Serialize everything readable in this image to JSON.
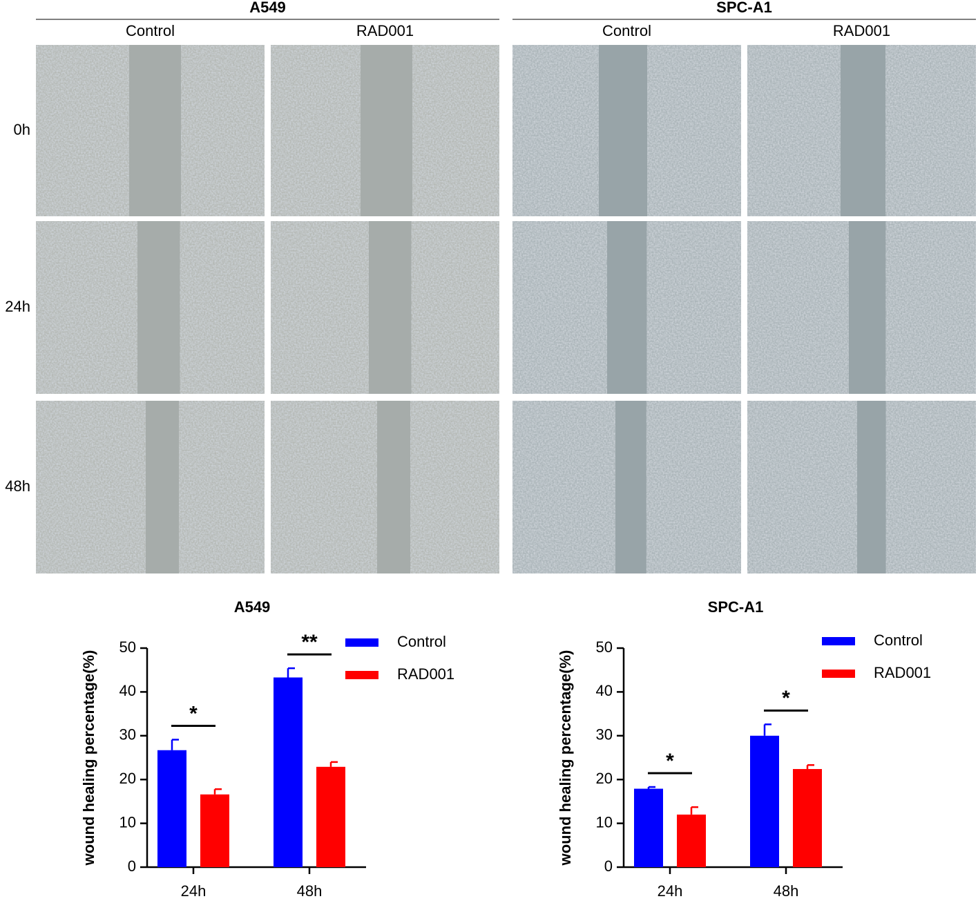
{
  "panel": {
    "groups": [
      {
        "name": "A549",
        "conditions": [
          "Control",
          "RAD001"
        ]
      },
      {
        "name": "SPC-A1",
        "conditions": [
          "Control",
          "RAD001"
        ]
      }
    ],
    "times": [
      "0h",
      "24h",
      "48h"
    ]
  },
  "chart_data": [
    {
      "type": "bar",
      "title": "A549",
      "y_label": "wound healing percentage(%)",
      "categories": [
        "24h",
        "48h"
      ],
      "series": [
        {
          "name": "Control",
          "color": "#0000ff",
          "values": [
            26.7,
            43.3
          ],
          "errors": [
            2.4,
            2.1
          ]
        },
        {
          "name": "RAD001",
          "color": "#ff0000",
          "values": [
            16.6,
            22.9
          ],
          "errors": [
            1.2,
            1.1
          ]
        }
      ],
      "annotations": [
        "*",
        "**"
      ],
      "ylim": [
        0,
        50
      ],
      "yticks": [
        0,
        10,
        20,
        30,
        40,
        50
      ],
      "legend": "top-right"
    },
    {
      "type": "bar",
      "title": "SPC-A1",
      "y_label": "wound healing percentage(%)",
      "categories": [
        "24h",
        "48h"
      ],
      "series": [
        {
          "name": "Control",
          "color": "#0000ff",
          "values": [
            17.9,
            30.0
          ],
          "errors": [
            0.4,
            2.6
          ]
        },
        {
          "name": "RAD001",
          "color": "#ff0000",
          "values": [
            12.0,
            22.4
          ],
          "errors": [
            1.7,
            0.9
          ]
        }
      ],
      "annotations": [
        "*",
        "*"
      ],
      "ylim": [
        0,
        50
      ],
      "yticks": [
        0,
        10,
        20,
        30,
        40,
        50
      ],
      "legend": "top-right"
    }
  ]
}
